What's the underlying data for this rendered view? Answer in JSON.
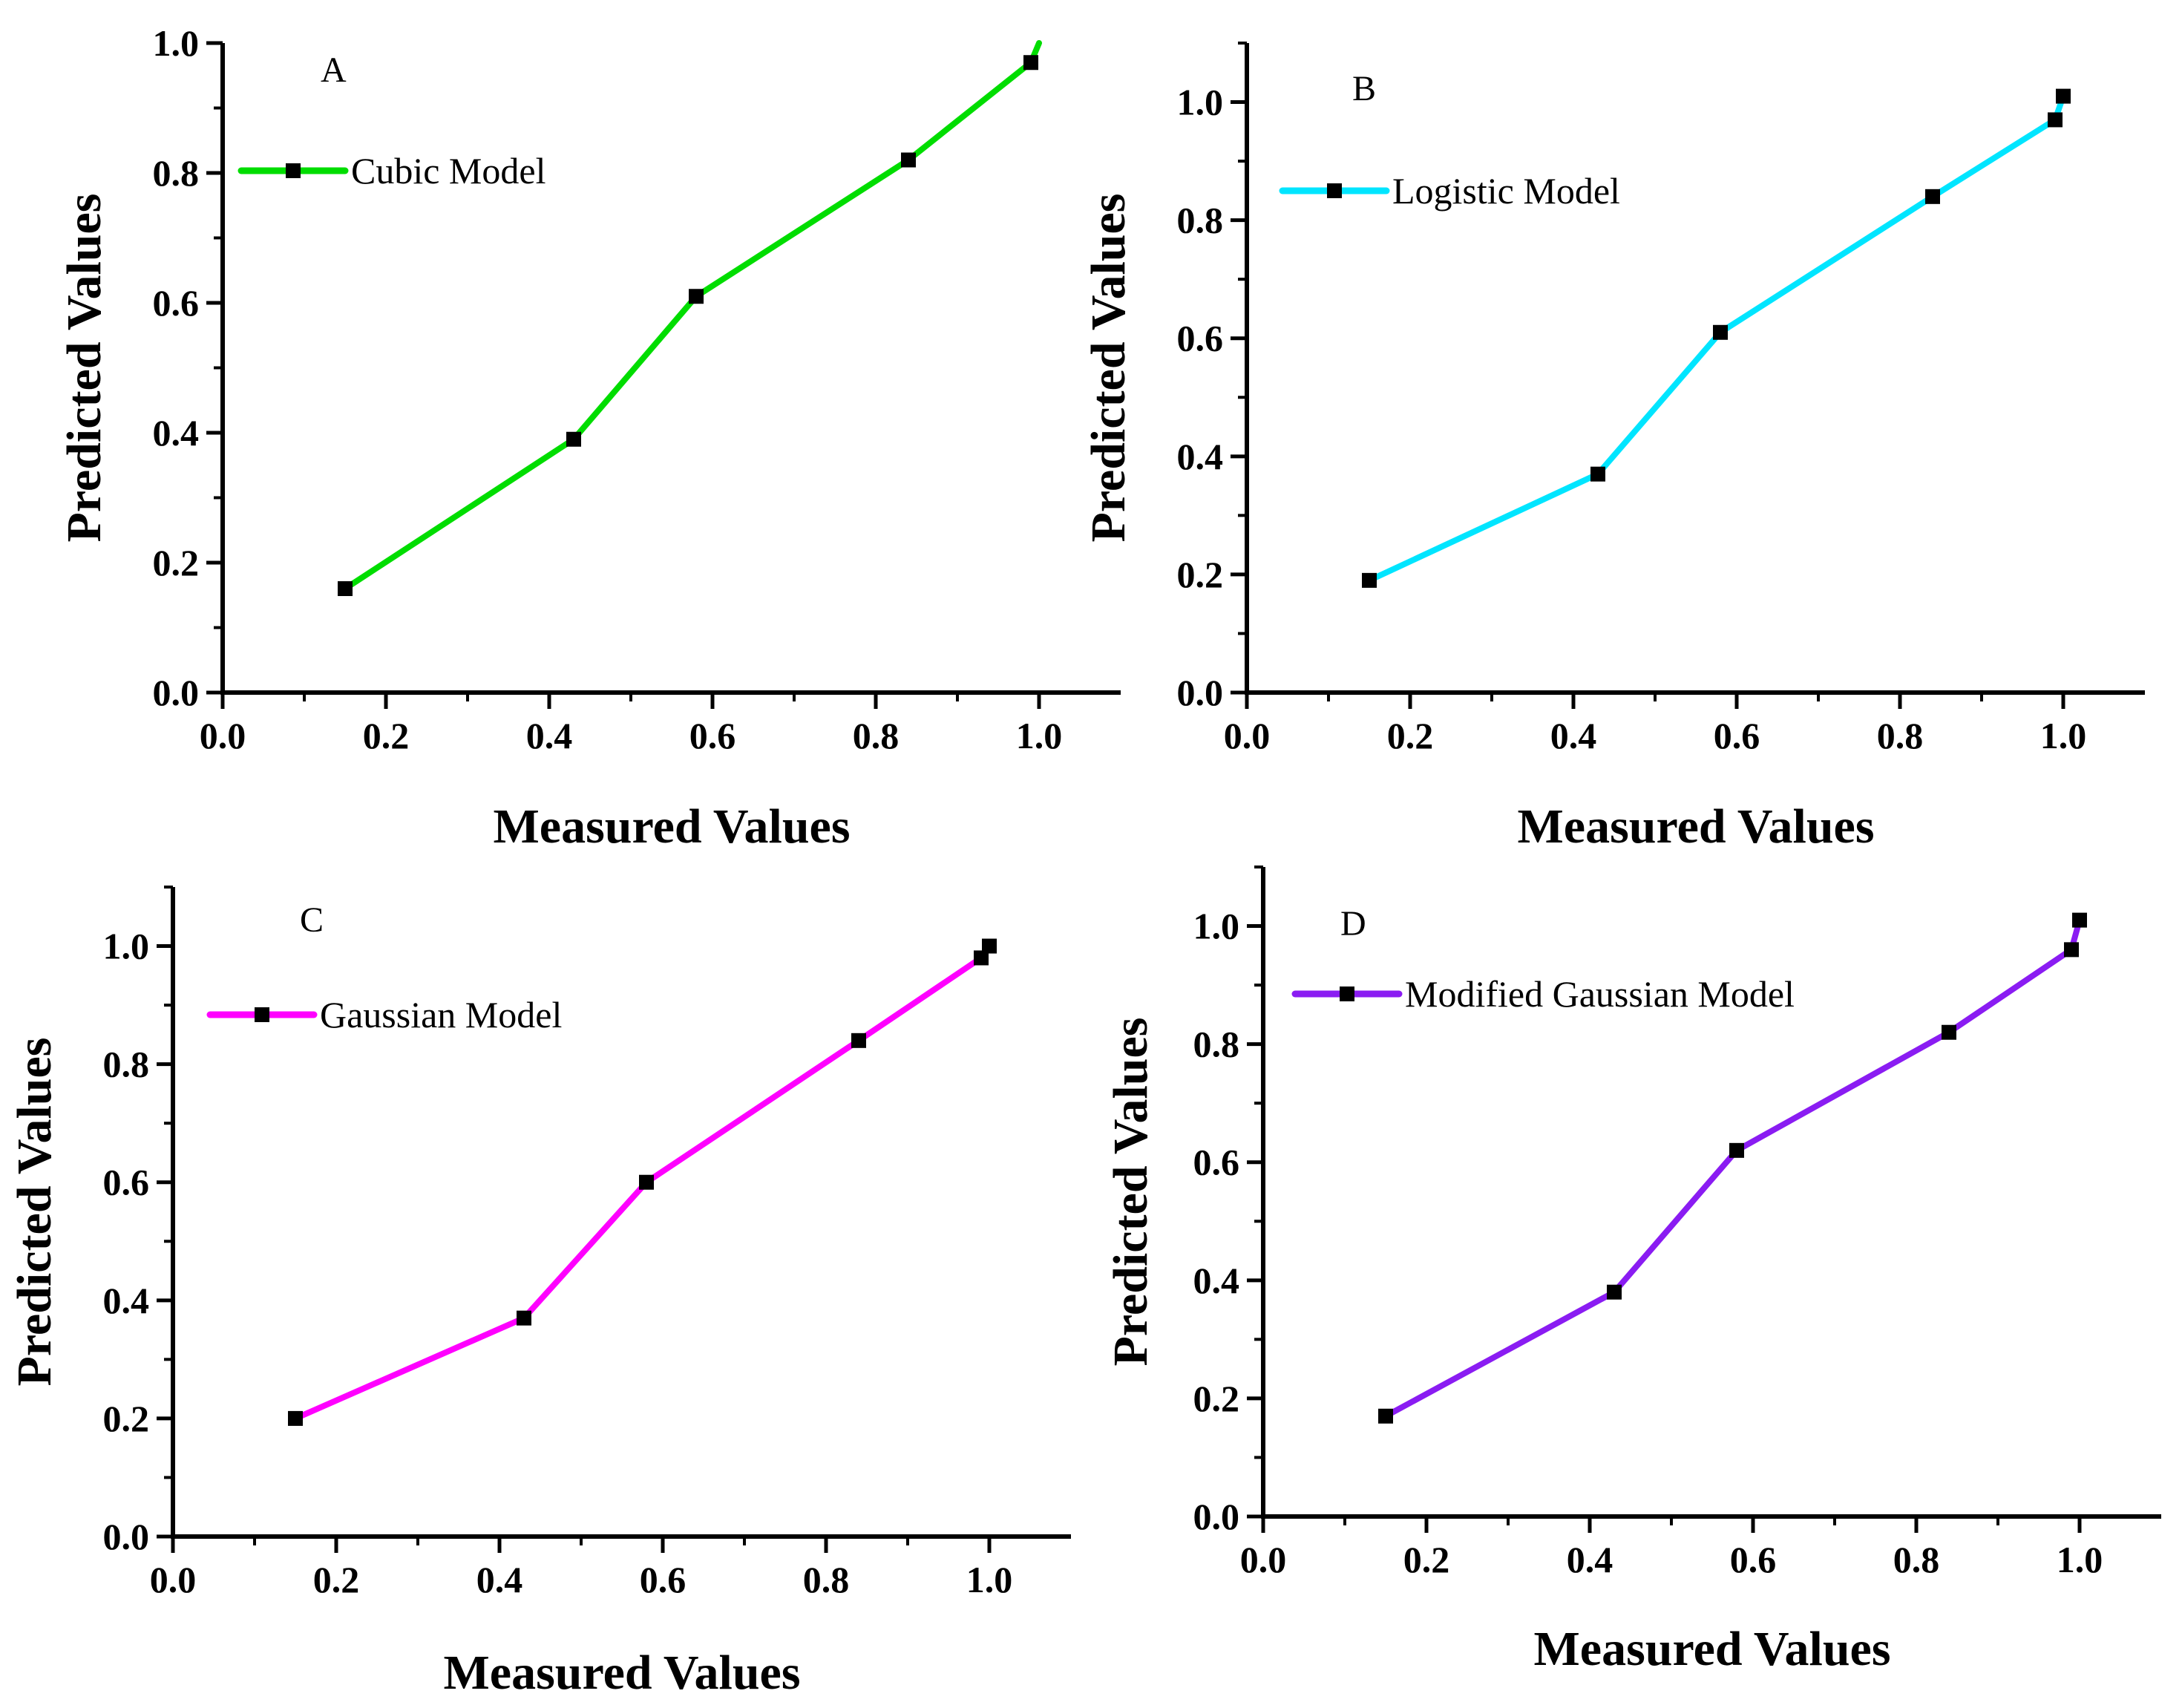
{
  "chart_data": [
    {
      "type": "line",
      "panel": "A",
      "xlabel": "Measured Values",
      "ylabel": "Predicted Values",
      "xlim": [
        0.0,
        1.1
      ],
      "ylim": [
        0.0,
        1.0
      ],
      "xticks": [
        "0.0",
        "0.2",
        "0.4",
        "0.6",
        "0.8",
        "1.0"
      ],
      "yticks": [
        "0.0",
        "0.2",
        "0.4",
        "0.6",
        "0.8",
        "1.0"
      ],
      "grid": false,
      "legend_position": "top-left",
      "series": [
        {
          "name": "Cubic Model",
          "color": "#00dd00",
          "x": [
            0.15,
            0.43,
            0.58,
            0.84,
            0.99,
            1.0
          ],
          "y": [
            0.16,
            0.39,
            0.61,
            0.82,
            0.97,
            1.0
          ],
          "markers": [
            0,
            1,
            2,
            3,
            4
          ]
        }
      ]
    },
    {
      "type": "line",
      "panel": "B",
      "xlabel": "Measured Values",
      "ylabel": "Predicted Values",
      "xlim": [
        0.0,
        1.1
      ],
      "ylim": [
        0.0,
        1.1
      ],
      "xticks": [
        "0.0",
        "0.2",
        "0.4",
        "0.6",
        "0.8",
        "1.0"
      ],
      "yticks": [
        "0.0",
        "0.2",
        "0.4",
        "0.6",
        "0.8",
        "1.0"
      ],
      "grid": false,
      "legend_position": "top-left",
      "series": [
        {
          "name": "Logistic Model",
          "color": "#00e5ff",
          "x": [
            0.15,
            0.43,
            0.58,
            0.84,
            0.99,
            1.0
          ],
          "y": [
            0.19,
            0.37,
            0.61,
            0.84,
            0.97,
            1.01
          ],
          "markers": [
            0,
            1,
            2,
            3,
            4,
            5
          ]
        }
      ]
    },
    {
      "type": "line",
      "panel": "C",
      "xlabel": "Measured Values",
      "ylabel": "Predicted Values",
      "xlim": [
        0.0,
        1.1
      ],
      "ylim": [
        0.0,
        1.1
      ],
      "xticks": [
        "0.0",
        "0.2",
        "0.4",
        "0.6",
        "0.8",
        "1.0"
      ],
      "yticks": [
        "0.0",
        "0.2",
        "0.4",
        "0.6",
        "0.8",
        "1.0"
      ],
      "grid": false,
      "legend_position": "top-left",
      "series": [
        {
          "name": "Gaussian Model",
          "color": "#ff00ff",
          "x": [
            0.15,
            0.43,
            0.58,
            0.84,
            0.99,
            1.0
          ],
          "y": [
            0.2,
            0.37,
            0.6,
            0.84,
            0.98,
            1.0
          ],
          "markers": [
            0,
            1,
            2,
            3,
            4,
            5
          ]
        }
      ]
    },
    {
      "type": "line",
      "panel": "D",
      "xlabel": "Measured Values",
      "ylabel": "Predicted Values",
      "xlim": [
        0.0,
        1.1
      ],
      "ylim": [
        0.0,
        1.1
      ],
      "xticks": [
        "0.0",
        "0.2",
        "0.4",
        "0.6",
        "0.8",
        "1.0"
      ],
      "yticks": [
        "0.0",
        "0.2",
        "0.4",
        "0.6",
        "0.8",
        "1.0"
      ],
      "grid": false,
      "legend_position": "top-left",
      "series": [
        {
          "name": "Modified Gaussian Model",
          "color": "#8a1cf2",
          "x": [
            0.15,
            0.43,
            0.58,
            0.84,
            0.99,
            1.0
          ],
          "y": [
            0.17,
            0.38,
            0.62,
            0.82,
            0.96,
            1.01
          ],
          "markers": [
            0,
            1,
            2,
            3,
            4,
            5
          ]
        }
      ]
    }
  ]
}
